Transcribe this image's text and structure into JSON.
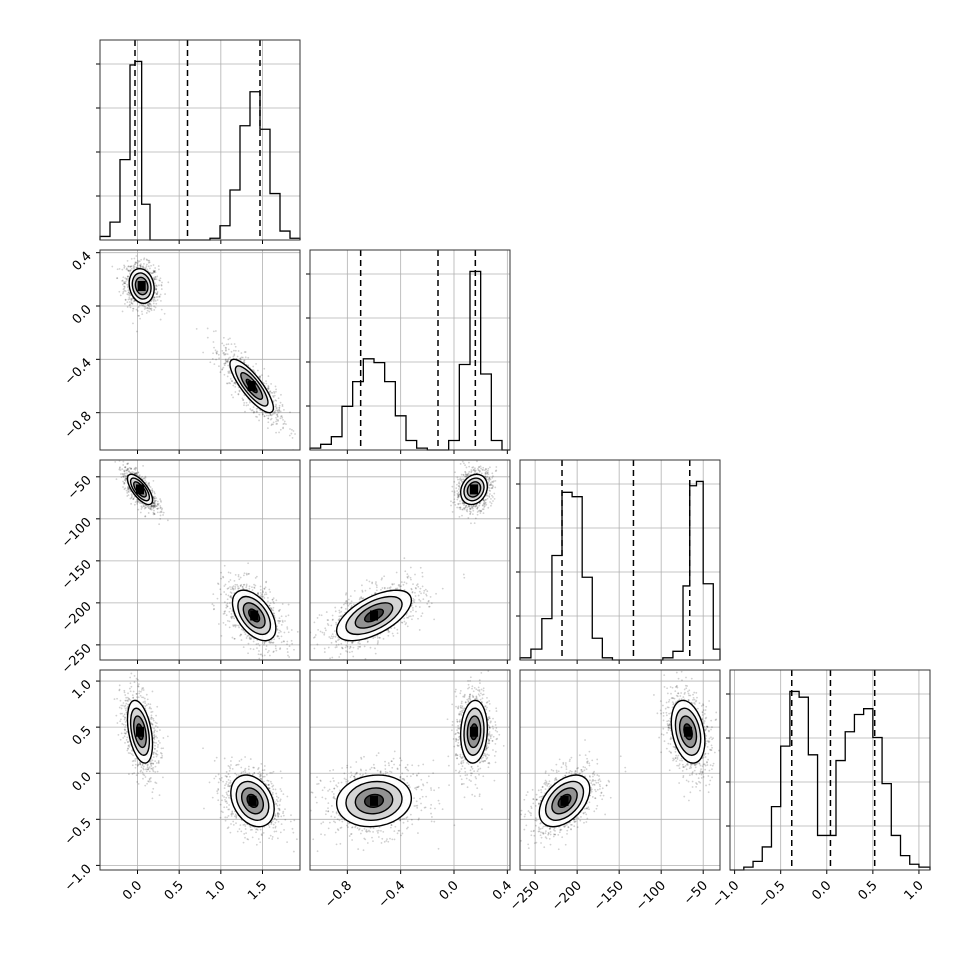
{
  "chart_data": {
    "type": "corner",
    "parameters": [
      {
        "range": [
          -0.45,
          1.95
        ],
        "ticks": [
          0.0,
          0.5,
          1.0,
          1.5
        ],
        "tick_labels": [
          "0.0",
          "0.5",
          "1.0",
          "1.5"
        ],
        "quantiles": [
          -0.03,
          0.6,
          1.47
        ],
        "hist": {
          "edges": [
            -0.45,
            -0.33,
            -0.21,
            -0.09,
            -0.03,
            0.05,
            0.15,
            0.27,
            0.39,
            0.51,
            0.63,
            0.75,
            0.87,
            0.99,
            1.11,
            1.23,
            1.35,
            1.47,
            1.59,
            1.71,
            1.83,
            1.95
          ],
          "values": [
            2,
            10,
            45,
            98,
            100,
            20,
            0,
            0,
            0,
            0,
            0,
            0,
            1,
            8,
            28,
            64,
            83,
            62,
            26,
            5,
            1
          ]
        }
      },
      {
        "range": [
          -1.08,
          0.42
        ],
        "ticks": [
          -0.8,
          -0.4,
          0.0,
          0.4
        ],
        "tick_labels": [
          "−0.8",
          "−0.4",
          "0.0",
          "0.4"
        ],
        "quantiles": [
          -0.7,
          -0.12,
          0.16
        ],
        "hist": {
          "edges": [
            -1.08,
            -1.0,
            -0.92,
            -0.84,
            -0.76,
            -0.68,
            -0.6,
            -0.52,
            -0.44,
            -0.36,
            -0.28,
            -0.2,
            -0.12,
            -0.04,
            0.04,
            0.12,
            0.2,
            0.28,
            0.36,
            0.42
          ],
          "values": [
            1,
            3,
            7,
            23,
            36,
            48,
            46,
            36,
            18,
            5,
            1,
            0,
            0,
            5,
            45,
            94,
            40,
            5,
            0
          ]
        }
      },
      {
        "range": [
          -268,
          -30
        ],
        "ticks": [
          -250,
          -200,
          -150,
          -100,
          -50
        ],
        "tick_labels": [
          "−250",
          "−200",
          "−150",
          "−100",
          "−50"
        ],
        "quantiles": [
          -218,
          -133,
          -66
        ],
        "hist": {
          "edges": [
            -268,
            -255,
            -242,
            -230,
            -218,
            -206,
            -194,
            -182,
            -170,
            -158,
            -146,
            -134,
            -122,
            -110,
            -98,
            -86,
            -74,
            -66,
            -58,
            -50,
            -38,
            -30
          ],
          "values": [
            1,
            5,
            19,
            48,
            77,
            75,
            38,
            10,
            1,
            0,
            0,
            0,
            0,
            0,
            1,
            4,
            34,
            80,
            82,
            35,
            5
          ]
        }
      },
      {
        "range": [
          -1.05,
          1.12
        ],
        "ticks": [
          -1.0,
          -0.5,
          0.0,
          0.5,
          1.0
        ],
        "tick_labels": [
          "−1.0",
          "−0.5",
          "0.0",
          "0.5",
          "1.0"
        ],
        "quantiles": [
          -0.38,
          0.04,
          0.52
        ],
        "hist": {
          "edges": [
            -1.05,
            -0.9,
            -0.8,
            -0.7,
            -0.6,
            -0.5,
            -0.4,
            -0.3,
            -0.2,
            -0.1,
            0.0,
            0.1,
            0.2,
            0.3,
            0.4,
            0.5,
            0.6,
            0.7,
            0.8,
            0.9,
            1.0,
            1.12
          ],
          "values": [
            0,
            1,
            3,
            8,
            22,
            43,
            62,
            60,
            40,
            12,
            12,
            38,
            48,
            54,
            56,
            46,
            30,
            12,
            5,
            2,
            1
          ]
        }
      }
    ],
    "pairs": [
      {
        "row": 1,
        "col": 0,
        "yticks": [
          -0.8,
          -0.4,
          0.0,
          0.4
        ],
        "ytick_labels": [
          "−0.8",
          "−0.4",
          "0.0",
          "0.4"
        ],
        "clusters": [
          {
            "mx": 0.05,
            "my": 0.15,
            "sx": 0.075,
            "sy": 0.065,
            "rho": -0.15
          },
          {
            "mx": 1.37,
            "my": -0.6,
            "sx": 0.13,
            "sy": 0.1,
            "rho": -0.82
          }
        ]
      },
      {
        "row": 2,
        "col": 0,
        "yticks": [
          -250,
          -200,
          -150,
          -100,
          -50
        ],
        "ytick_labels": [
          "−250",
          "−200",
          "−150",
          "−100",
          "−50"
        ],
        "clusters": [
          {
            "mx": 0.03,
            "my": -65,
            "sx": 0.075,
            "sy": 9,
            "rho": -0.7
          },
          {
            "mx": 1.4,
            "my": -215,
            "sx": 0.13,
            "sy": 15,
            "rho": -0.5
          }
        ]
      },
      {
        "row": 2,
        "col": 1,
        "clusters": [
          {
            "mx": 0.15,
            "my": -65,
            "sx": 0.05,
            "sy": 9,
            "rho": 0.2
          },
          {
            "mx": -0.6,
            "my": -215,
            "sx": 0.14,
            "sy": 15,
            "rho": 0.6
          }
        ]
      },
      {
        "row": 3,
        "col": 0,
        "yticks": [
          -1.0,
          -0.5,
          0.0,
          0.5,
          1.0
        ],
        "ytick_labels": [
          "−1.0",
          "−0.5",
          "0.0",
          "0.5",
          "1.0"
        ],
        "clusters": [
          {
            "mx": 0.03,
            "my": 0.45,
            "sx": 0.075,
            "sy": 0.17,
            "rho": -0.4
          },
          {
            "mx": 1.38,
            "my": -0.3,
            "sx": 0.13,
            "sy": 0.14,
            "rho": -0.3
          }
        ]
      },
      {
        "row": 3,
        "col": 1,
        "clusters": [
          {
            "mx": 0.15,
            "my": 0.45,
            "sx": 0.05,
            "sy": 0.17,
            "rho": 0.1
          },
          {
            "mx": -0.6,
            "my": -0.3,
            "sx": 0.14,
            "sy": 0.14,
            "rho": 0.1
          }
        ]
      },
      {
        "row": 3,
        "col": 2,
        "clusters": [
          {
            "mx": -68,
            "my": 0.45,
            "sx": 10,
            "sy": 0.17,
            "rho": -0.3
          },
          {
            "mx": -215,
            "my": -0.3,
            "sx": 15,
            "sy": 0.14,
            "rho": 0.45
          }
        ]
      }
    ],
    "contour_levels_sigma": [
      0.5,
      1.0,
      1.5,
      2.0
    ],
    "grid": true,
    "colors": {
      "line": "#000000",
      "grid": "#b0b0b0",
      "points": "#000000"
    }
  }
}
